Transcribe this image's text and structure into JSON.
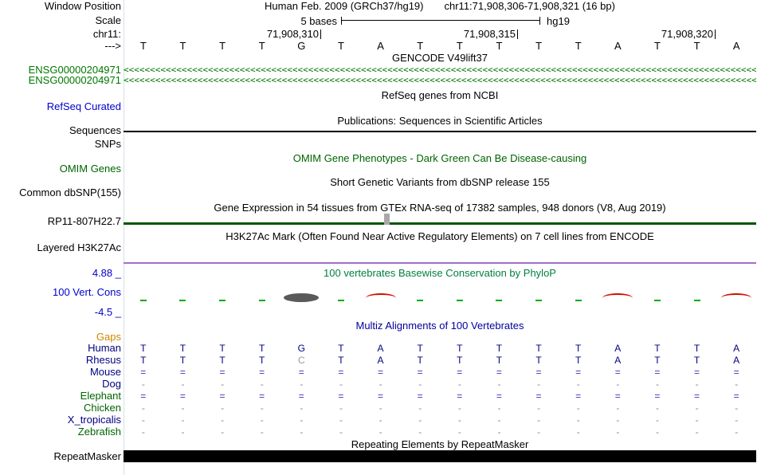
{
  "header": {
    "label": "Window Position",
    "assembly": "Human Feb. 2009 (GRCh37/hg19)",
    "position": "chr11:71,908,306-71,908,321 (16 bp)"
  },
  "scale": {
    "label": "Scale",
    "bar_text": "5 bases",
    "genome": "hg19"
  },
  "ruler": {
    "chrom_label": "chr11:",
    "strand_label": "--->",
    "ticks": [
      "71,908,310",
      "71,908,315",
      "71,908,320"
    ]
  },
  "sequence": [
    "T",
    "T",
    "T",
    "T",
    "G",
    "T",
    "A",
    "T",
    "T",
    "T",
    "T",
    "T",
    "A",
    "T",
    "T",
    "A"
  ],
  "gencode": {
    "title": "GENCODE V49lift37",
    "arrow_char": "<",
    "arrow_repeat": 180,
    "transcripts": [
      {
        "label": "ENSG00000204971"
      },
      {
        "label": "ENSG00000204971"
      }
    ]
  },
  "tracks": {
    "refseq_label": "RefSeq Curated",
    "refseq_title": "RefSeq genes from NCBI",
    "publications_title": "Publications: Sequences in Scientific Articles",
    "sequences_label": "Sequences",
    "snps_label": "SNPs",
    "omim_label": "OMIM Genes",
    "omim_title": "OMIM Gene Phenotypes - Dark Green Can Be Disease-causing",
    "dbsnp_label": "Common dbSNP(155)",
    "dbsnp_title": "Short Genetic Variants from dbSNP release 155",
    "gtex_title": "Gene Expression in 54 tissues from GTEx RNA-seq of 17382 samples, 948 donors (V8, Aug 2019)",
    "gtex_gene_label": "RP11-807H22.7",
    "h3k27ac_title": "H3K27Ac Mark (Often Found Near Active Regulatory Elements) on 7 cell lines from ENCODE",
    "h3k27ac_label": "Layered H3K27Ac",
    "cons_scale_max": "4.88 _",
    "cons_label": "100 Vert. Cons",
    "cons_scale_min": "-4.5 _",
    "cons_title": "100 vertebrates Basewise Conservation by PhyloP",
    "multiz_title": "Multiz Alignments of 100 Vertebrates",
    "gaps_label": "Gaps",
    "repeat_title": "Repeating Elements by RepeatMasker",
    "repeat_label": "RepeatMasker"
  },
  "conservation": {
    "columns": [
      "dash",
      "dash",
      "dash",
      "dash",
      "blob",
      "dash",
      "arc",
      "dash",
      "dash",
      "dash",
      "dash",
      "dash",
      "arc",
      "dash",
      "dash",
      "arc"
    ]
  },
  "alignment": {
    "species": [
      {
        "name": "Human",
        "label_color": "#000080",
        "cell_color": "#000080",
        "cells": [
          "T",
          "T",
          "T",
          "T",
          "G",
          "T",
          "A",
          "T",
          "T",
          "T",
          "T",
          "T",
          "A",
          "T",
          "T",
          "A"
        ]
      },
      {
        "name": "Rhesus",
        "label_color": "#000080",
        "cell_color": "#000080",
        "muted_indices": [
          4
        ],
        "cells": [
          "T",
          "T",
          "T",
          "T",
          "C",
          "T",
          "A",
          "T",
          "T",
          "T",
          "T",
          "T",
          "A",
          "T",
          "T",
          "A"
        ]
      },
      {
        "name": "Mouse",
        "label_color": "#000080",
        "cell_color": "#3333bb",
        "cells": [
          "=",
          "=",
          "=",
          "=",
          "=",
          "=",
          "=",
          "=",
          "=",
          "=",
          "=",
          "=",
          "=",
          "=",
          "=",
          "="
        ]
      },
      {
        "name": "Dog",
        "label_color": "#000080",
        "cell_color": "#888899",
        "cells": [
          "-",
          "-",
          "-",
          "-",
          "-",
          "-",
          "-",
          "-",
          "-",
          "-",
          "-",
          "-",
          "-",
          "-",
          "-",
          "-"
        ]
      },
      {
        "name": "Elephant",
        "label_color": "#006400",
        "cell_color": "#3333bb",
        "cells": [
          "=",
          "=",
          "=",
          "=",
          "=",
          "=",
          "=",
          "=",
          "=",
          "=",
          "=",
          "=",
          "=",
          "=",
          "=",
          "="
        ]
      },
      {
        "name": "Chicken",
        "label_color": "#006400",
        "cell_color": "#888899",
        "cells": [
          "-",
          "-",
          "-",
          "-",
          "-",
          "-",
          "-",
          "-",
          "-",
          "-",
          "-",
          "-",
          "-",
          "-",
          "-",
          "-"
        ]
      },
      {
        "name": "X_tropicalis",
        "label_color": "#000080",
        "cell_color": "#888899",
        "cells": [
          "-",
          "-",
          "-",
          "-",
          "-",
          "-",
          "-",
          "-",
          "-",
          "-",
          "-",
          "-",
          "-",
          "-",
          "-",
          "-"
        ]
      },
      {
        "name": "Zebrafish",
        "label_color": "#006400",
        "cell_color": "#888899",
        "cells": [
          "-",
          "-",
          "-",
          "-",
          "-",
          "-",
          "-",
          "-",
          "-",
          "-",
          "-",
          "-",
          "-",
          "-",
          "-",
          "-"
        ]
      }
    ]
  },
  "colors": {
    "track_label_blue": "#0000cc",
    "gene_green": "#007700",
    "omim_green": "#006400",
    "phylop_title_green": "#008040",
    "multiz_title_blue": "#000099",
    "gaps_orange": "#cc8800",
    "gtex_bar_green": "#005500",
    "h3k27ac_purple": "#a070d0",
    "cons_positive_green": "#00aa00",
    "cons_negative_red": "#cc1100",
    "repeat_black": "#000000",
    "muted_base_gray": "#999999"
  }
}
